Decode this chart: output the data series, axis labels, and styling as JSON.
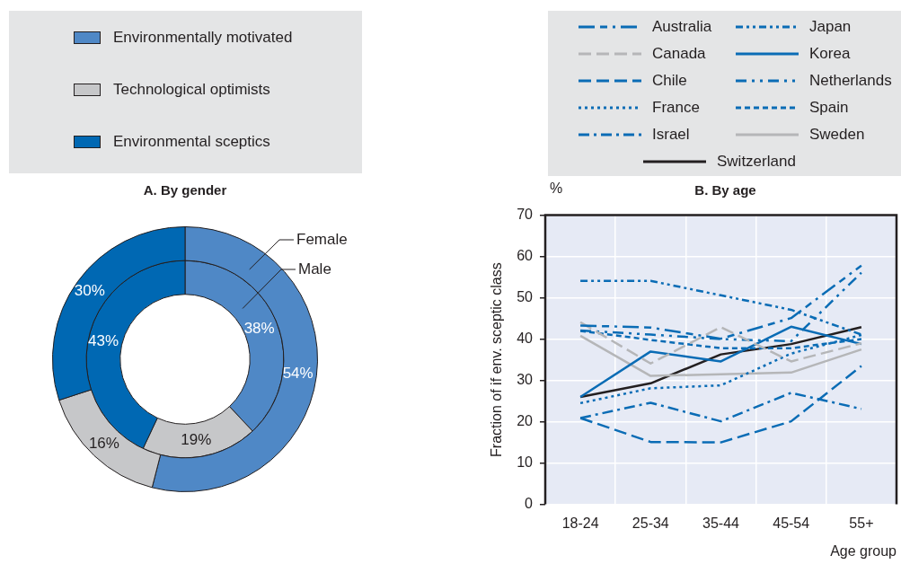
{
  "chart_data": [
    {
      "type": "donut",
      "title": "A. By gender",
      "categories": [
        "Environmentally motivated",
        "Technological optimists",
        "Environmental sceptics"
      ],
      "colors": [
        "#4f88c6",
        "#c6c7c9",
        "#0068b3"
      ],
      "series": [
        {
          "name": "Female",
          "values": [
            54,
            16,
            30
          ],
          "value_labels": [
            "54%",
            "16%",
            "30%"
          ]
        },
        {
          "name": "Male",
          "values": [
            38,
            19,
            43
          ],
          "value_labels": [
            "38%",
            "19%",
            "43%"
          ]
        }
      ],
      "legend": "top"
    },
    {
      "type": "line",
      "title": "B. By age",
      "ylabel": "Fraction of if env. sceptic class",
      "xlabel": "Age group",
      "annotations": [
        "%"
      ],
      "categories": [
        "18-24",
        "25-34",
        "35-44",
        "45-54",
        "55+"
      ],
      "ylim": [
        0,
        70
      ],
      "yticks": [
        0,
        10,
        20,
        30,
        40,
        50,
        60,
        70
      ],
      "grid": true,
      "legend": "top",
      "marker": "none",
      "series": [
        {
          "name": "Australia",
          "color": "#0a6cb5",
          "line_style": "longdashdot",
          "values": [
            43.3,
            42.8,
            40.1,
            45.1,
            57.8
          ]
        },
        {
          "name": "Canada",
          "color": "#b5b6b8",
          "line_style": "dashed",
          "values": [
            44.1,
            34.1,
            42.9,
            34.6,
            39
          ]
        },
        {
          "name": "Chile",
          "color": "#0a6cb5",
          "line_style": "dashed",
          "values": [
            20.9,
            15.1,
            15,
            20.1,
            33.5
          ]
        },
        {
          "name": "France",
          "color": "#0a6cb5",
          "line_style": "dotted",
          "values": [
            24.5,
            28.1,
            28.8,
            36.5,
            41
          ]
        },
        {
          "name": "Israel",
          "color": "#0a6cb5",
          "line_style": "dashdot",
          "values": [
            20.9,
            24.6,
            20.1,
            27,
            23.1
          ]
        },
        {
          "name": "Japan",
          "color": "#0a6cb5",
          "line_style": "dashdotdot",
          "values": [
            54.1,
            54.1,
            50.6,
            47.1,
            41.1
          ]
        },
        {
          "name": "Korea",
          "color": "#0a6cb5",
          "line_style": "solid",
          "values": [
            26,
            37,
            34.6,
            43,
            38.8
          ]
        },
        {
          "name": "Netherlands",
          "color": "#0a6cb5",
          "line_style": "dashdotdotdash",
          "values": [
            42.1,
            41.1,
            40,
            39.5,
            56.1
          ]
        },
        {
          "name": "Spain",
          "color": "#0a6cb5",
          "line_style": "shortdash",
          "values": [
            42,
            39.8,
            37.8,
            37.8,
            40
          ]
        },
        {
          "name": "Sweden",
          "color": "#b5b6b8",
          "line_style": "solid",
          "values": [
            40.8,
            31.1,
            31.5,
            31.9,
            37.5
          ]
        },
        {
          "name": "Switzerland",
          "color": "#231f20",
          "line_style": "solid",
          "values": [
            26,
            29.3,
            36.3,
            38.8,
            42.9
          ]
        }
      ]
    }
  ]
}
